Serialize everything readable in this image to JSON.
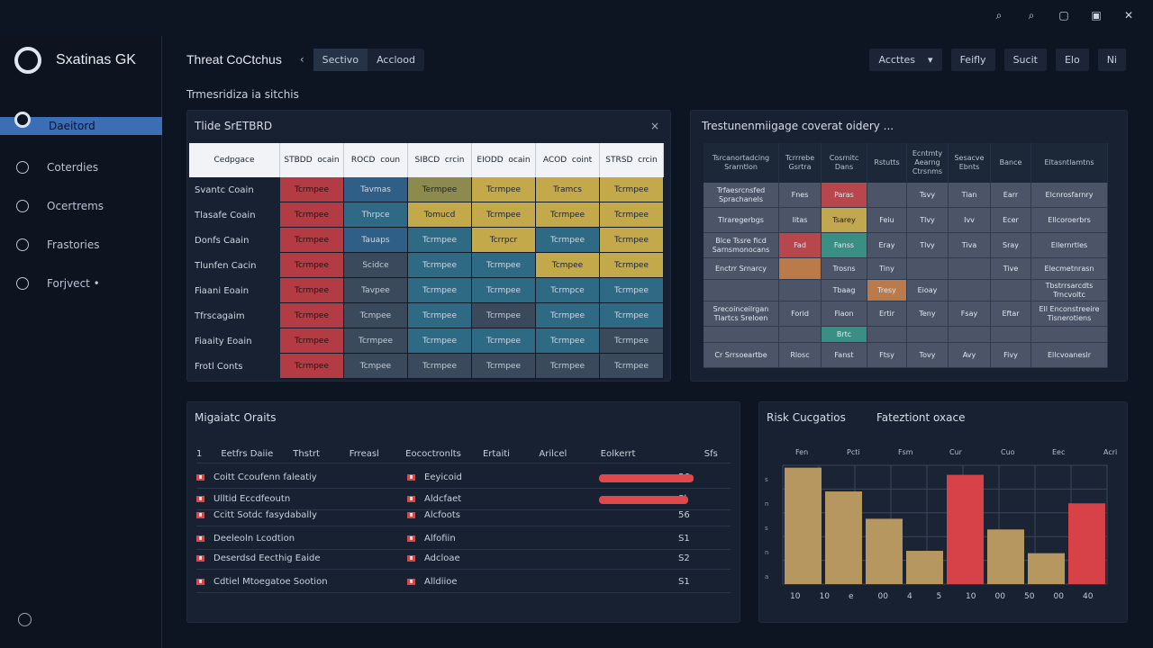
{
  "top_icons": [
    "search-icon",
    "zoom-icon",
    "window-icon",
    "tile-icon",
    "close-icon"
  ],
  "app": {
    "name": "Sxatinas GK"
  },
  "nav": [
    {
      "label": "Daeitord",
      "icon": "dashboard-icon",
      "active": true
    },
    {
      "label": "Coterdies",
      "icon": "categories-icon"
    },
    {
      "label": "Ocertrems",
      "icon": "controls-icon"
    },
    {
      "label": "Frastories",
      "icon": "features-icon"
    },
    {
      "label": "Forjvect •",
      "icon": "projects-icon"
    }
  ],
  "header": {
    "title": "Threat CoCtchus",
    "back": "‹",
    "seg": [
      "Sectivo",
      "Acclood"
    ],
    "dropdown": "Accttes",
    "buttons": [
      "Feifly",
      "Sucit",
      "Elo",
      "Ni"
    ]
  },
  "subtitle": "Trmesridiza ia sitchis",
  "matrix1": {
    "title": "Tlide SrETBRD",
    "close": "×",
    "col_header": "Cedpgace",
    "columns": [
      "STBDD  ocain",
      "ROCD  coun",
      "SIBCD  crcin",
      "EIODD  ocain",
      "ACOD  coint",
      "STRSD  crcin"
    ],
    "rows": [
      {
        "label": "Svantc Coain",
        "cells": [
          "Tcrmpee",
          "Tavmas",
          "Termpee",
          "Tcrmpee",
          "Tramcs",
          "Tcrmpee"
        ]
      },
      {
        "label": "Tlasafe Coain",
        "cells": [
          "Tcrmpee",
          "Thrpce",
          "Tomucd",
          "Tcrmpee",
          "Tcrmpee",
          "Tcrmpee"
        ]
      },
      {
        "label": "Donfs Caain",
        "cells": [
          "Tcrmpee",
          "Tauaps",
          "Tcrmpee",
          "Tcrrpcr",
          "Tcrmpee",
          "Tcrmpee"
        ]
      },
      {
        "label": "Tlunfen Cacin",
        "cells": [
          "Tcrmpee",
          "Scidce",
          "Tcrmpee",
          "Tcrmpee",
          "Tcmpee",
          "Tcrmpee"
        ]
      },
      {
        "label": "Fiaani Eoain",
        "cells": [
          "Tcrmpee",
          "Tavpee",
          "Tcrmpee",
          "Tcrmpee",
          "Tcrmpce",
          "Tcrmpee"
        ]
      },
      {
        "label": "Tfrscagaim",
        "cells": [
          "Tcrmpee",
          "Tcmpee",
          "Tcrmpee",
          "Tcrmpee",
          "Tcrmpee",
          "Tcrmpee"
        ]
      },
      {
        "label": "Fiaaity Eoain",
        "cells": [
          "Tcrmpee",
          "Tcrmpee",
          "Tcrmpee",
          "Tcrmpee",
          "Tcrmpee",
          "Tcrmpee"
        ]
      },
      {
        "label": "Frotl Conts",
        "cells": [
          "Tcrmpee",
          "Tcmpee",
          "Tcrmpee",
          "Tcrmpee",
          "Tcrmpee",
          "Tcrmpee"
        ]
      }
    ]
  },
  "matrix2": {
    "title": "Trestunenmiigage coverat oidery ...",
    "headers": [
      "Tsrcanortadcing Srarntlon",
      "Tcrrrebe Gsrtra",
      "Cosrnitc Dans",
      "Rstutts",
      "Ecntmty Aearng Ctrsnms",
      "Sesacve Ebnts",
      "Bance",
      "Eltasntlamtns"
    ],
    "rows": [
      [
        "Trfaesrcnsfed Sprachanels",
        "Fnes",
        "Paras",
        "",
        "Tsvy",
        "Tian",
        "Earr",
        "Elcnrosfarnry"
      ],
      [
        "Tlraregerbgs",
        "Iitas",
        "Tsarey",
        "Feiu",
        "Tlvy",
        "Ivv",
        "Ecer",
        "Ellcoroerbrs"
      ],
      [
        "Blce Tssre ficd Sarnsmonocans",
        "Fad",
        "Fanss",
        "Eray",
        "Tlvy",
        "Tiva",
        "Sray",
        "Ellernrtles"
      ],
      [
        "Enctrr Srnarcy",
        "",
        "Trosns",
        "Tiny",
        "",
        "",
        "Tive",
        "Elecmetnrasn"
      ],
      [
        "",
        "",
        "Tbaag",
        "Tresy",
        "Eioay",
        "",
        "",
        "Tbstrrsarcdts Trncvoltc"
      ],
      [
        "Srecoinceilrgan Tlartcs Sreloen",
        "Forid",
        "Fiaon",
        "Ertir",
        "Teny",
        "Fsay",
        "Eftar",
        "Ell Enconstreeire Tisnerotiens"
      ],
      [
        "",
        "",
        "Brtc",
        "",
        "",
        "",
        "",
        ""
      ],
      [
        "Cr Srrsoeartbe",
        "Rlosc",
        "Fanst",
        "Ftsy",
        "Tovy",
        "Avy",
        "Fivy",
        "Ellcvoaneslr"
      ]
    ]
  },
  "mitigation": {
    "title": "Migaiatc Oraits",
    "columns": [
      "1 ",
      "Eetfrs Daiie",
      "Thstrt",
      "Frreasl",
      "Eococtronlts",
      "Ertaiti",
      "Arilcel",
      "Eolkerrt",
      "Sfs"
    ],
    "rows": [
      {
        "name": "Coitt Ccoufenn faleatiy",
        "tag": "Eeyicoid",
        "score": "56",
        "bar": 0.85
      },
      {
        "name": "Ulltid Eccdfeoutn",
        "tag": "Aldcfaet",
        "score": "Sl",
        "bar": 0.8
      },
      {
        "name": "Ccitt Sotdc fasydabally",
        "tag": "Alcfoots",
        "score": "56",
        "bar": null
      },
      {
        "name": "Deeleoln Lcodtion",
        "tag": "Alfofiin",
        "score": "S1",
        "bar": null
      },
      {
        "name": "Deserdsd Eecthig Eaide",
        "tag": "Adcloae",
        "score": "S2",
        "bar": null
      },
      {
        "name": "Cdtiel Mtoegatoe Sootion",
        "tag": "Alldiioe",
        "score": "S1",
        "bar": null
      }
    ]
  },
  "risk": {
    "title": "Risk Cucgatios",
    "subtitle": "Fateztiont oxace",
    "top_labels": [
      "Fen",
      "Pcti",
      "Fsm",
      "Cur",
      "Cuo",
      "Eec",
      "Acri"
    ],
    "y_ticks": [
      "s",
      "n",
      "s",
      "n",
      "a"
    ],
    "x_ticks": [
      "10",
      "10",
      "e",
      "00",
      "4",
      "5",
      "10",
      "00",
      "50",
      "00",
      "40"
    ]
  },
  "chart_data": {
    "type": "bar",
    "categories": [
      "1",
      "2",
      "3",
      "4",
      "5",
      "6",
      "7",
      "8"
    ],
    "values": [
      0.98,
      0.78,
      0.55,
      0.28,
      0.92,
      0.46,
      0.26,
      0.68
    ],
    "highlight": [
      false,
      false,
      false,
      false,
      true,
      false,
      false,
      true
    ],
    "colors": {
      "normal": "#b69760",
      "highlight": "#d64247"
    }
  }
}
